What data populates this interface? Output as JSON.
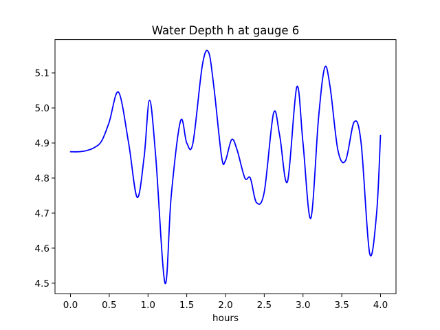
{
  "chart_data": {
    "type": "line",
    "title": "Water Depth h at gauge 6",
    "xlabel": "hours",
    "ylabel": "",
    "xlim": [
      -0.2,
      4.2
    ],
    "ylim": [
      4.47,
      5.195
    ],
    "xticks": [
      0.0,
      0.5,
      1.0,
      1.5,
      2.0,
      2.5,
      3.0,
      3.5,
      4.0
    ],
    "xtick_labels": [
      "0.0",
      "0.5",
      "1.0",
      "1.5",
      "2.0",
      "2.5",
      "3.0",
      "3.5",
      "4.0"
    ],
    "yticks": [
      4.5,
      4.6,
      4.7,
      4.8,
      4.9,
      5.0,
      5.1
    ],
    "ytick_labels": [
      "4.5",
      "4.6",
      "4.7",
      "4.8",
      "4.9",
      "5.0",
      "5.1"
    ],
    "grid": false,
    "legend": false,
    "series": [
      {
        "color": "#0000ff",
        "x": [
          0.0,
          0.1,
          0.2,
          0.3,
          0.4,
          0.5,
          0.62,
          0.75,
          0.86,
          0.95,
          1.02,
          1.1,
          1.22,
          1.3,
          1.42,
          1.5,
          1.58,
          1.7,
          1.78,
          1.85,
          1.95,
          2.0,
          2.08,
          2.15,
          2.25,
          2.32,
          2.4,
          2.5,
          2.62,
          2.7,
          2.8,
          2.92,
          3.0,
          3.1,
          3.2,
          3.28,
          3.35,
          3.45,
          3.55,
          3.66,
          3.75,
          3.86,
          3.95,
          4.0
        ],
        "values": [
          4.875,
          4.875,
          4.878,
          4.886,
          4.905,
          4.96,
          5.045,
          4.9,
          4.745,
          4.86,
          5.022,
          4.86,
          4.5,
          4.75,
          4.963,
          4.9,
          4.9,
          5.12,
          5.16,
          5.06,
          4.86,
          4.85,
          4.91,
          4.88,
          4.8,
          4.8,
          4.73,
          4.76,
          4.985,
          4.92,
          4.79,
          5.06,
          4.9,
          4.685,
          4.97,
          5.115,
          5.06,
          4.88,
          4.85,
          4.96,
          4.9,
          4.585,
          4.7,
          4.922
        ]
      }
    ]
  }
}
